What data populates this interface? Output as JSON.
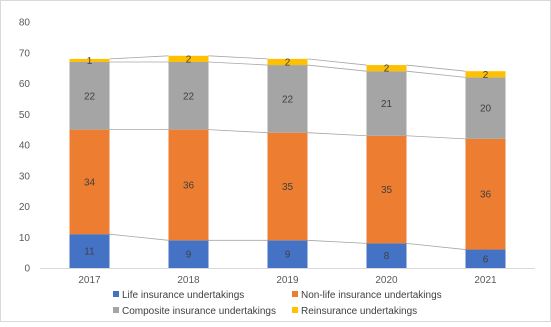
{
  "chart_data": {
    "type": "bar",
    "stacked": true,
    "categories": [
      "2017",
      "2018",
      "2019",
      "2020",
      "2021"
    ],
    "series": [
      {
        "name": "Life insurance undertakings",
        "color": "#4472C4",
        "values": [
          11,
          9,
          9,
          8,
          6
        ]
      },
      {
        "name": "Non-life insurance undertakings",
        "color": "#ED7D31",
        "values": [
          34,
          36,
          35,
          35,
          36
        ]
      },
      {
        "name": "Composite insurance undertakings",
        "color": "#A5A5A5",
        "values": [
          22,
          22,
          22,
          21,
          20
        ]
      },
      {
        "name": "Reinsurance undertakings",
        "color": "#FFC000",
        "values": [
          1,
          2,
          2,
          2,
          2
        ]
      }
    ],
    "ylim": [
      0,
      80
    ],
    "yticks": [
      0,
      10,
      20,
      30,
      40,
      50,
      60,
      70,
      80
    ],
    "series_lines": true,
    "grid": false,
    "legend_position": "bottom"
  }
}
